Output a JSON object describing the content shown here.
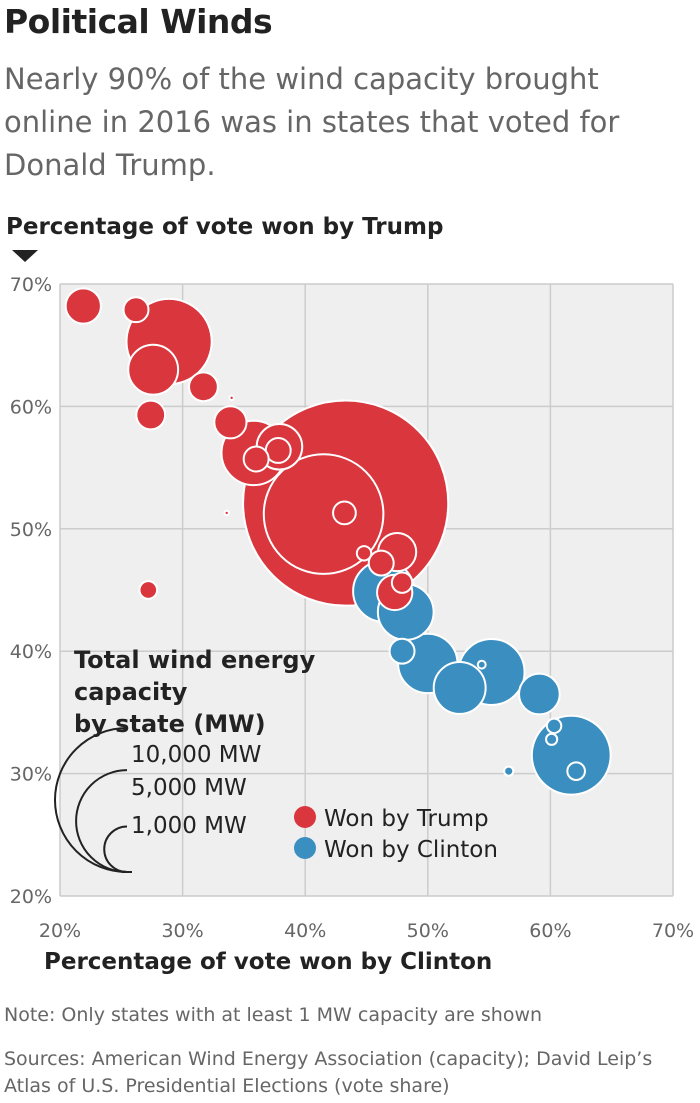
{
  "header": {
    "title": "Political Winds",
    "subtitle": "Nearly 90% of the wind capacity brought online in 2016 was in states that voted for Donald Trump."
  },
  "footer": {
    "note": "Note: Only states with at least 1 MW capacity are shown",
    "sources": "Sources: American Wind Energy Association (capacity); David Leip’s Atlas of U.S. Presidential Elections (vote share)"
  },
  "colors": {
    "trump": "#d9363e",
    "clinton": "#3b8fc0",
    "grid": "#cccccc"
  },
  "chart_data": {
    "type": "scatter",
    "xlabel": "Percentage of vote won by Clinton",
    "ylabel": "Percentage of vote won by Trump",
    "xlim": [
      20,
      70
    ],
    "ylim": [
      20,
      70
    ],
    "xticks": [
      20,
      30,
      40,
      50,
      60,
      70
    ],
    "yticks": [
      20,
      30,
      40,
      50,
      60,
      70
    ],
    "x_tick_labels": [
      "20%",
      "30%",
      "40%",
      "50%",
      "60%",
      "70%"
    ],
    "y_tick_labels": [
      "20%",
      "30%",
      "40%",
      "50%",
      "60%",
      "70%"
    ],
    "grid": true,
    "size_legend": {
      "title": "Total wind energy capacity by state (MW)",
      "items": [
        {
          "label": "10,000 MW",
          "value": 10000
        },
        {
          "label": "5,000 MW",
          "value": 5000
        },
        {
          "label": "1,000 MW",
          "value": 1000
        }
      ]
    },
    "color_legend": [
      {
        "label": "Won by Trump",
        "color": "#d9363e"
      },
      {
        "label": "Won by Clinton",
        "color": "#3b8fc0"
      }
    ],
    "series": [
      {
        "name": "Won by Trump",
        "points": [
          {
            "x": 21.9,
            "y": 68.2,
            "mw": 600
          },
          {
            "x": 26.2,
            "y": 67.9,
            "mw": 300
          },
          {
            "x": 28.9,
            "y": 65.3,
            "mw": 3500
          },
          {
            "x": 27.6,
            "y": 63.0,
            "mw": 1200
          },
          {
            "x": 31.7,
            "y": 61.6,
            "mw": 400
          },
          {
            "x": 27.4,
            "y": 59.3,
            "mw": 400
          },
          {
            "x": 34.0,
            "y": 60.7,
            "mw": 2
          },
          {
            "x": 33.9,
            "y": 58.7,
            "mw": 500
          },
          {
            "x": 35.8,
            "y": 56.2,
            "mw": 2000
          },
          {
            "x": 37.9,
            "y": 56.7,
            "mw": 1000
          },
          {
            "x": 37.8,
            "y": 56.4,
            "mw": 300
          },
          {
            "x": 36.0,
            "y": 55.7,
            "mw": 300
          },
          {
            "x": 43.3,
            "y": 52.1,
            "mw": 20300
          },
          {
            "x": 41.5,
            "y": 51.2,
            "mw": 6900
          },
          {
            "x": 43.2,
            "y": 51.3,
            "mw": 250
          },
          {
            "x": 33.6,
            "y": 51.3,
            "mw": 2
          },
          {
            "x": 27.2,
            "y": 45.0,
            "mw": 150
          },
          {
            "x": 47.5,
            "y": 48.1,
            "mw": 700
          },
          {
            "x": 46.2,
            "y": 47.2,
            "mw": 300
          },
          {
            "x": 44.8,
            "y": 48.0,
            "mw": 100
          },
          {
            "x": 47.9,
            "y": 45.6,
            "mw": 200
          },
          {
            "x": 47.3,
            "y": 44.8,
            "mw": 600
          }
        ]
      },
      {
        "name": "Won by Clinton",
        "points": [
          {
            "x": 46.4,
            "y": 44.9,
            "mw": 1800
          },
          {
            "x": 48.2,
            "y": 43.2,
            "mw": 1500
          },
          {
            "x": 47.9,
            "y": 40.0,
            "mw": 300
          },
          {
            "x": 50.0,
            "y": 39.0,
            "mw": 1700
          },
          {
            "x": 52.6,
            "y": 37.0,
            "mw": 1300
          },
          {
            "x": 55.2,
            "y": 38.3,
            "mw": 2100
          },
          {
            "x": 54.4,
            "y": 38.9,
            "mw": 30
          },
          {
            "x": 59.1,
            "y": 36.5,
            "mw": 800
          },
          {
            "x": 60.3,
            "y": 33.9,
            "mw": 100
          },
          {
            "x": 60.1,
            "y": 32.8,
            "mw": 60
          },
          {
            "x": 61.7,
            "y": 31.5,
            "mw": 3000
          },
          {
            "x": 62.1,
            "y": 30.2,
            "mw": 150
          },
          {
            "x": 56.6,
            "y": 30.2,
            "mw": 40
          }
        ]
      }
    ]
  }
}
